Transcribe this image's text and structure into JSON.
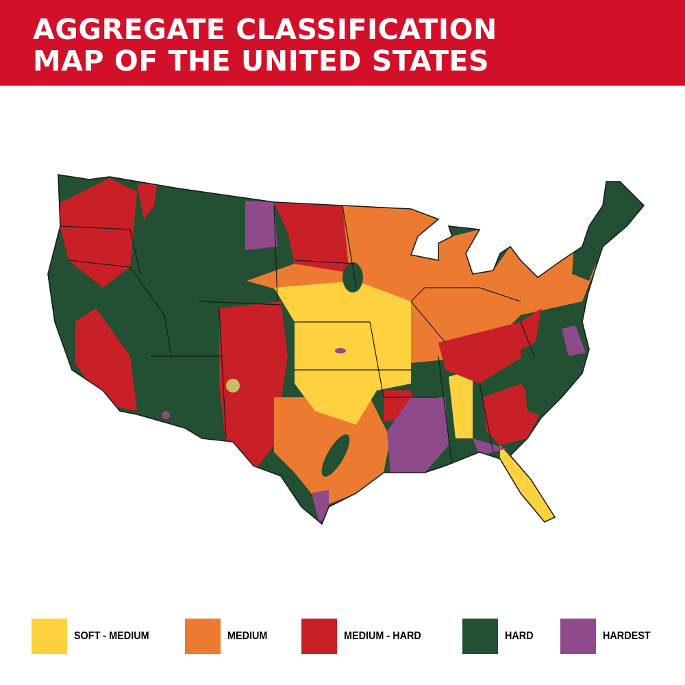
{
  "title": {
    "line1": "AGGREGATE CLASSIFICATION",
    "line2": "MAP OF THE UNITED STATES"
  },
  "colors": {
    "banner": "#d3102a",
    "soft_medium": "#fdd23e",
    "medium": "#ec7b31",
    "medium_hard": "#c92027",
    "hard": "#234f33",
    "hardest": "#8e4a8a"
  },
  "legend": [
    {
      "label": "SOFT - MEDIUM",
      "color": "#fdd23e"
    },
    {
      "label": "MEDIUM",
      "color": "#ec7b31"
    },
    {
      "label": "MEDIUM - HARD",
      "color": "#c92027"
    },
    {
      "label": "HARD",
      "color": "#234f33"
    },
    {
      "label": "HARDEST",
      "color": "#8e4a8a"
    }
  ]
}
